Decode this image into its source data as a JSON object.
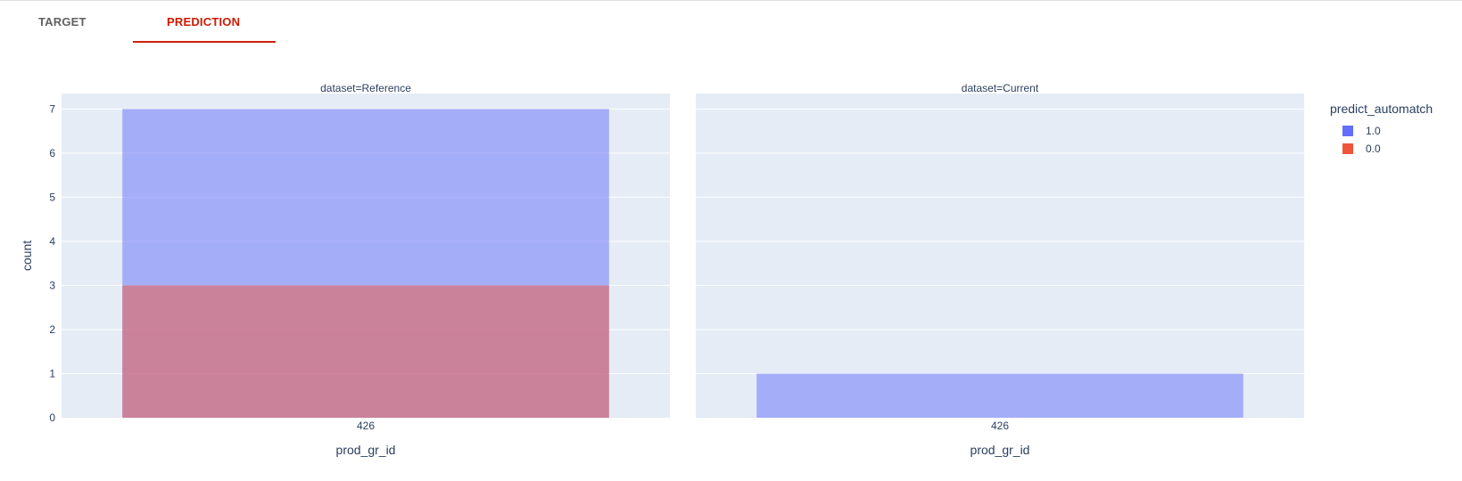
{
  "tabs": [
    {
      "label": "TARGET",
      "active": false
    },
    {
      "label": "PREDICTION",
      "active": true
    }
  ],
  "colors": {
    "accent": "#cc1a00",
    "plot_bg": "#e5ecf6",
    "series_1": "#636efa",
    "series_0": "#ef553b"
  },
  "chart_data": {
    "type": "bar",
    "barmode": "overlay",
    "ylabel": "count",
    "ylim": [
      0,
      7
    ],
    "yticks": [
      0,
      1,
      2,
      3,
      4,
      5,
      6,
      7
    ],
    "grid": true,
    "legend": {
      "title": "predict_automatch",
      "placement": "right",
      "entries": [
        {
          "label": "1.0",
          "color": "#636efa"
        },
        {
          "label": "0.0",
          "color": "#ef553b"
        }
      ]
    },
    "facets": [
      {
        "title": "dataset=Reference",
        "xlabel": "prod_gr_id",
        "categories": [
          "426"
        ],
        "series": [
          {
            "name": "1.0",
            "values": [
              7
            ]
          },
          {
            "name": "0.0",
            "values": [
              3
            ]
          }
        ]
      },
      {
        "title": "dataset=Current",
        "xlabel": "prod_gr_id",
        "categories": [
          "426"
        ],
        "series": [
          {
            "name": "1.0",
            "values": [
              1
            ]
          },
          {
            "name": "0.0",
            "values": [
              0
            ]
          }
        ]
      }
    ]
  }
}
